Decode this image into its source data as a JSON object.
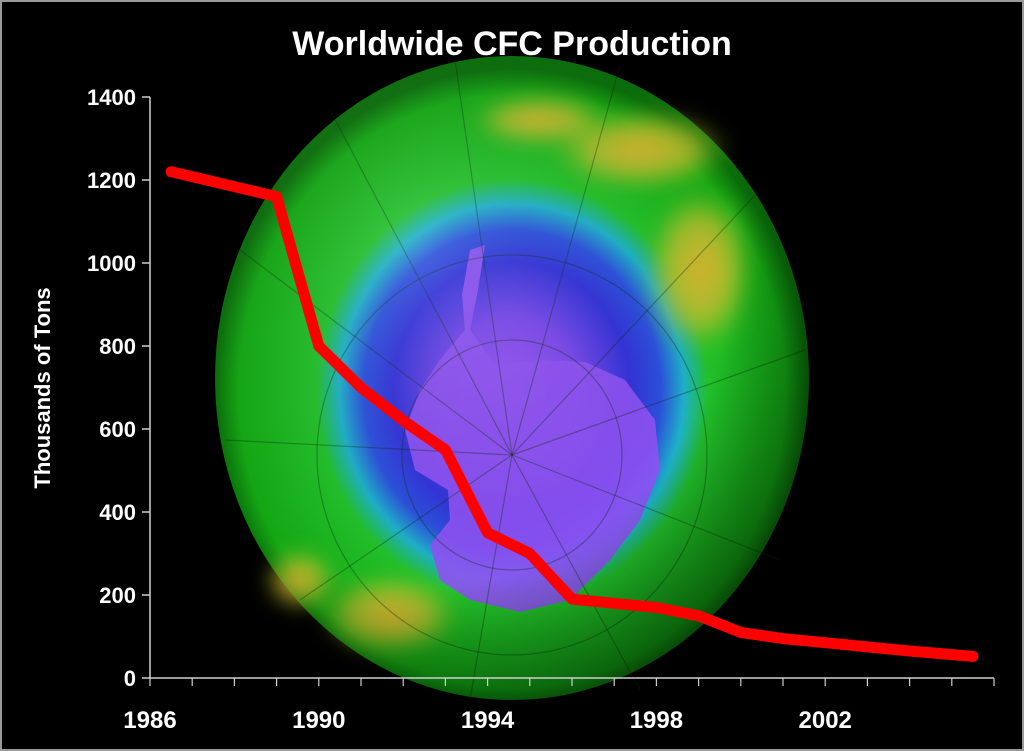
{
  "chart_data": {
    "type": "line",
    "title": "Worldwide CFC Production",
    "xlabel": "",
    "ylabel": "Thousands of Tons",
    "x_ticks": [
      "1986",
      "1990",
      "1994",
      "1998",
      "2002"
    ],
    "y_ticks": [
      0,
      200,
      400,
      600,
      800,
      1000,
      1200,
      1400
    ],
    "xlim": [
      1986,
      2006
    ],
    "ylim": [
      0,
      1400
    ],
    "grid": false,
    "legend": "none",
    "series": [
      {
        "color": "#ff0000",
        "x": [
          1986.5,
          1989,
          1990,
          1991,
          1992,
          1993,
          1994,
          1995,
          1996,
          1997,
          1998,
          1999,
          2000,
          2001,
          2002,
          2003,
          2004,
          2005.5
        ],
        "y": [
          1220,
          1160,
          800,
          700,
          620,
          550,
          350,
          300,
          190,
          180,
          170,
          150,
          110,
          95,
          85,
          75,
          65,
          52
        ]
      }
    ]
  },
  "background": {
    "image": "antarctic-ozone-hole-globe",
    "colors": {
      "page": "#000000",
      "globe_outer": "#14b814",
      "ozone_low": "#2a2ad4",
      "ozone_core": "#8a4ef0",
      "ozone_high": "#e8a020",
      "line": "#ff0000",
      "axis": "#cfcfcf",
      "text": "#ffffff"
    }
  }
}
